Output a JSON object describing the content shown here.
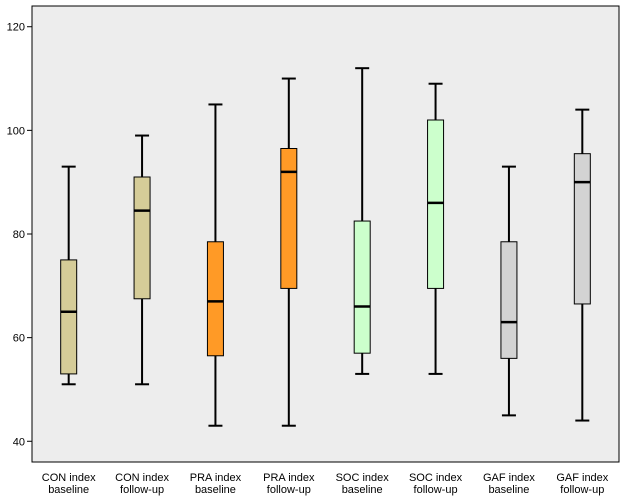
{
  "chart_data": {
    "type": "box",
    "title": "",
    "xlabel": "",
    "ylabel": "",
    "ylim": [
      36,
      124
    ],
    "yticks": [
      40,
      60,
      80,
      100,
      120
    ],
    "grid": false,
    "background_color": "#EDEDED",
    "categories": [
      {
        "line1": "CON index",
        "line2": "baseline",
        "min": 51,
        "q1": 53,
        "median": 65,
        "q3": 75,
        "max": 93,
        "color": "#D5CC98"
      },
      {
        "line1": "CON index",
        "line2": "follow-up",
        "min": 51,
        "q1": 67.5,
        "median": 84.5,
        "q3": 91,
        "max": 99,
        "color": "#D5CC98"
      },
      {
        "line1": "PRA index",
        "line2": "baseline",
        "min": 43,
        "q1": 56.5,
        "median": 67,
        "q3": 78.5,
        "max": 105,
        "color": "#FF9A26"
      },
      {
        "line1": "PRA index",
        "line2": "follow-up",
        "min": 43,
        "q1": 69.5,
        "median": 92,
        "q3": 96.5,
        "max": 110,
        "color": "#FF9A26"
      },
      {
        "line1": "SOC index",
        "line2": "baseline",
        "min": 53,
        "q1": 57,
        "median": 66,
        "q3": 82.5,
        "max": 112,
        "color": "#CCFFCC"
      },
      {
        "line1": "SOC index",
        "line2": "follow-up",
        "min": 53,
        "q1": 69.5,
        "median": 86,
        "q3": 102,
        "max": 109,
        "color": "#CCFFCC"
      },
      {
        "line1": "GAF index",
        "line2": "baseline",
        "min": 45,
        "q1": 56,
        "median": 63,
        "q3": 78.5,
        "max": 93,
        "color": "#D3D3D3"
      },
      {
        "line1": "GAF index",
        "line2": "follow-up",
        "min": 44,
        "q1": 66.5,
        "median": 90,
        "q3": 95.5,
        "max": 104,
        "color": "#D3D3D3"
      }
    ]
  }
}
